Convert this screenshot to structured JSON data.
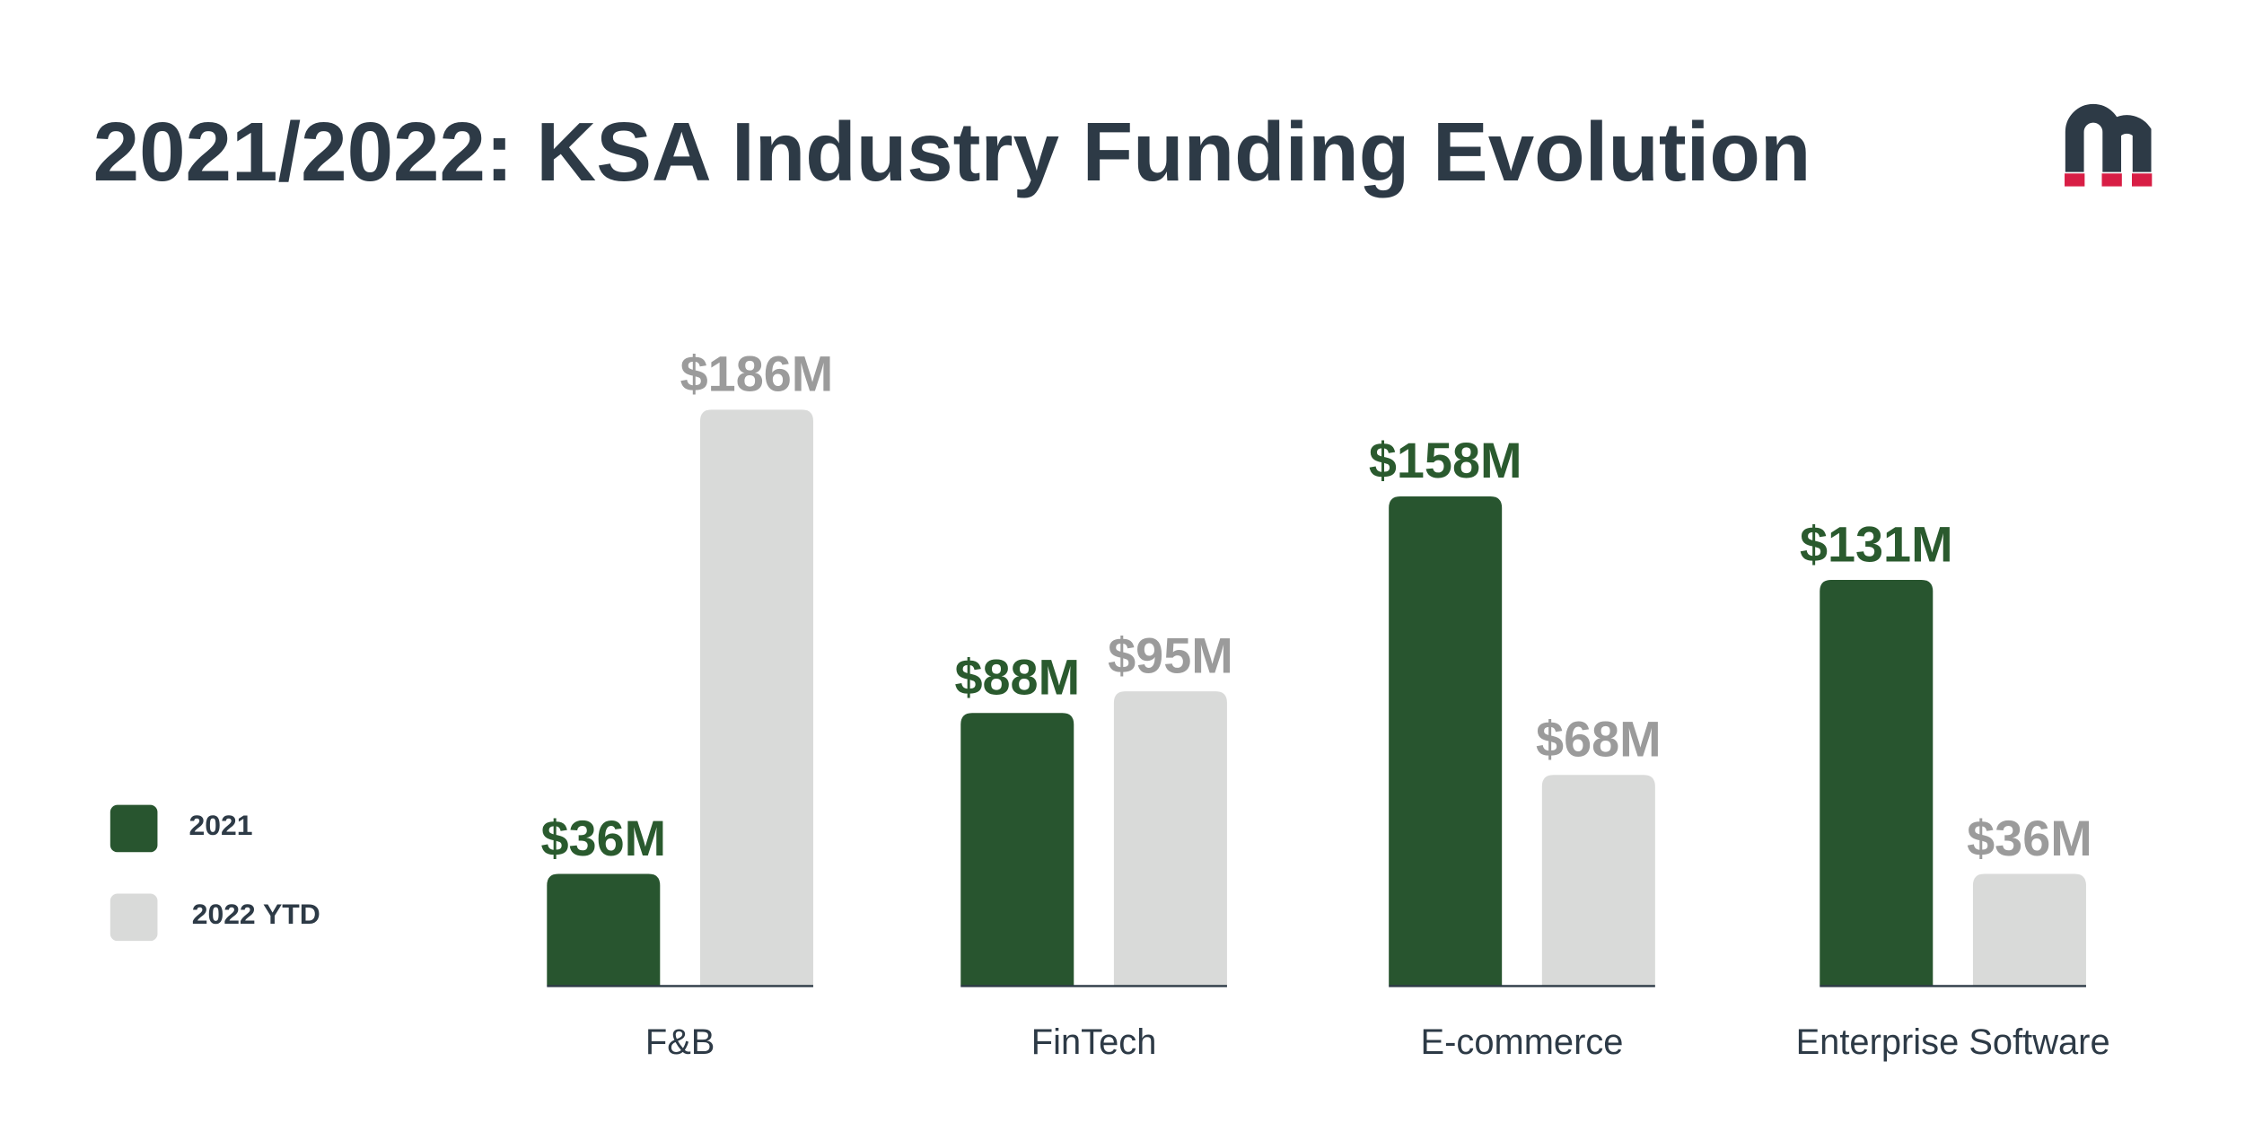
{
  "chart_data": {
    "type": "bar",
    "title": "2021/2022: KSA Industry Funding Evolution",
    "categories": [
      "F&B",
      "FinTech",
      "E-commerce",
      "Enterprise Software"
    ],
    "series": [
      {
        "name": "2021",
        "color": "#28552f",
        "label_color": "#2a5a2e",
        "values": [
          36,
          88,
          158,
          131
        ],
        "value_labels": [
          "$36M",
          "$88M",
          "$158M",
          "$131M"
        ]
      },
      {
        "name": "2022 YTD",
        "color": "#d9dad9",
        "label_color": "#9b9b9b",
        "values": [
          186,
          95,
          68,
          36
        ],
        "value_labels": [
          "$186M",
          "$95M",
          "$68M",
          "$36M"
        ]
      }
    ],
    "legend": "left"
  }
}
